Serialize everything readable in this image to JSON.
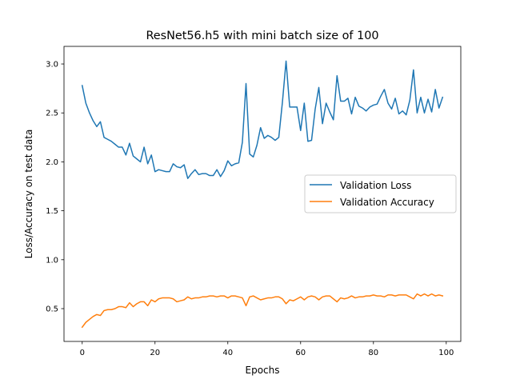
{
  "chart_data": {
    "type": "line",
    "title": "ResNet56.h5 with mini batch size of 100",
    "xlabel": "Epochs",
    "ylabel": "Loss/Accuracy on test data",
    "xlim": [
      -5,
      104
    ],
    "ylim": [
      0.165,
      3.18
    ],
    "xticks": [
      0,
      20,
      40,
      60,
      80,
      100
    ],
    "xtick_labels": [
      "0",
      "20",
      "40",
      "60",
      "80",
      "100"
    ],
    "yticks": [
      0.5,
      1.0,
      1.5,
      2.0,
      2.5,
      3.0
    ],
    "ytick_labels": [
      "0.5",
      "1.0",
      "1.5",
      "2.0",
      "2.5",
      "3.0"
    ],
    "grid": false,
    "legend": "center-right",
    "x": [
      0,
      1,
      2,
      3,
      4,
      5,
      6,
      7,
      8,
      9,
      10,
      11,
      12,
      13,
      14,
      15,
      16,
      17,
      18,
      19,
      20,
      21,
      22,
      23,
      24,
      25,
      26,
      27,
      28,
      29,
      30,
      31,
      32,
      33,
      34,
      35,
      36,
      37,
      38,
      39,
      40,
      41,
      42,
      43,
      44,
      45,
      46,
      47,
      48,
      49,
      50,
      51,
      52,
      53,
      54,
      55,
      56,
      57,
      58,
      59,
      60,
      61,
      62,
      63,
      64,
      65,
      66,
      67,
      68,
      69,
      70,
      71,
      72,
      73,
      74,
      75,
      76,
      77,
      78,
      79,
      80,
      81,
      82,
      83,
      84,
      85,
      86,
      87,
      88,
      89,
      90,
      91,
      92,
      93,
      94,
      95,
      96,
      97,
      98,
      99
    ],
    "series": [
      {
        "name": "Validation Loss",
        "color": "#1f77b4",
        "values": [
          2.78,
          2.6,
          2.5,
          2.42,
          2.36,
          2.41,
          2.25,
          2.23,
          2.21,
          2.18,
          2.15,
          2.15,
          2.07,
          2.19,
          2.06,
          2.03,
          2.0,
          2.15,
          1.98,
          2.07,
          1.9,
          1.92,
          1.91,
          1.9,
          1.9,
          1.98,
          1.95,
          1.94,
          1.97,
          1.83,
          1.88,
          1.92,
          1.87,
          1.88,
          1.88,
          1.86,
          1.86,
          1.92,
          1.85,
          1.91,
          2.01,
          1.96,
          1.98,
          1.99,
          2.2,
          2.8,
          2.08,
          2.05,
          2.17,
          2.35,
          2.24,
          2.27,
          2.25,
          2.22,
          2.25,
          2.61,
          3.03,
          2.56,
          2.56,
          2.56,
          2.32,
          2.6,
          2.21,
          2.22,
          2.54,
          2.76,
          2.39,
          2.6,
          2.51,
          2.43,
          2.88,
          2.62,
          2.62,
          2.65,
          2.49,
          2.66,
          2.57,
          2.55,
          2.52,
          2.56,
          2.58,
          2.59,
          2.67,
          2.74,
          2.6,
          2.54,
          2.65,
          2.49,
          2.52,
          2.48,
          2.63,
          2.94,
          2.5,
          2.66,
          2.5,
          2.64,
          2.51,
          2.74,
          2.55,
          2.66
        ]
      },
      {
        "name": "Validation Accuracy",
        "color": "#ff7f0e",
        "values": [
          0.31,
          0.36,
          0.39,
          0.42,
          0.44,
          0.43,
          0.48,
          0.49,
          0.49,
          0.5,
          0.52,
          0.52,
          0.51,
          0.56,
          0.52,
          0.55,
          0.57,
          0.57,
          0.53,
          0.59,
          0.57,
          0.6,
          0.61,
          0.61,
          0.61,
          0.6,
          0.57,
          0.58,
          0.59,
          0.62,
          0.6,
          0.61,
          0.61,
          0.62,
          0.62,
          0.63,
          0.63,
          0.62,
          0.63,
          0.63,
          0.61,
          0.63,
          0.63,
          0.62,
          0.61,
          0.53,
          0.62,
          0.63,
          0.61,
          0.59,
          0.6,
          0.61,
          0.61,
          0.62,
          0.62,
          0.6,
          0.55,
          0.59,
          0.58,
          0.6,
          0.62,
          0.59,
          0.62,
          0.63,
          0.62,
          0.59,
          0.62,
          0.63,
          0.63,
          0.6,
          0.57,
          0.61,
          0.6,
          0.61,
          0.63,
          0.61,
          0.62,
          0.62,
          0.63,
          0.63,
          0.64,
          0.63,
          0.63,
          0.62,
          0.64,
          0.64,
          0.63,
          0.64,
          0.64,
          0.64,
          0.62,
          0.6,
          0.65,
          0.63,
          0.65,
          0.63,
          0.65,
          0.63,
          0.64,
          0.63
        ]
      }
    ]
  }
}
